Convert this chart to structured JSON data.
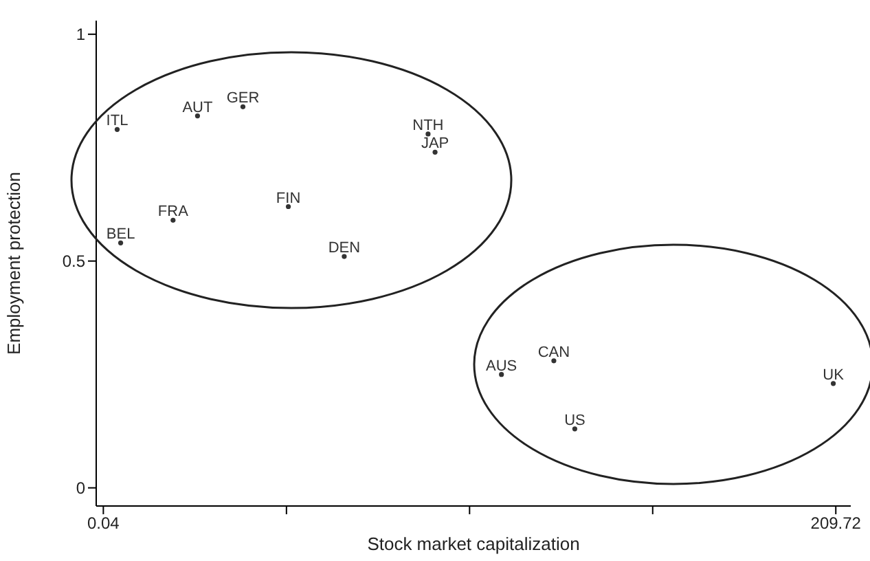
{
  "chart_data": {
    "type": "scatter",
    "xlabel": "Stock market capitalization",
    "ylabel": "Employment protection",
    "xlim": [
      -2,
      214
    ],
    "ylim": [
      -0.04,
      1.03
    ],
    "xticks": [
      0.04,
      {
        "value": 52.46,
        "label": null
      },
      {
        "value": 104.88,
        "label": null
      },
      {
        "value": 157.3,
        "label": null
      },
      209.72
    ],
    "yticks": [
      0,
      0.5,
      1
    ],
    "grid": false,
    "legend": false,
    "marker": "circle",
    "series": [
      {
        "name": "ITL",
        "color": "#333333",
        "x": [
          4
        ],
        "values": [
          0.79
        ]
      },
      {
        "name": "AUT",
        "color": "#333333",
        "x": [
          27
        ],
        "values": [
          0.82
        ]
      },
      {
        "name": "GER",
        "color": "#333333",
        "x": [
          40
        ],
        "values": [
          0.84
        ]
      },
      {
        "name": "NTH",
        "color": "#333333",
        "x": [
          93
        ],
        "values": [
          0.78
        ]
      },
      {
        "name": "JAP",
        "color": "#333333",
        "x": [
          95
        ],
        "values": [
          0.74
        ]
      },
      {
        "name": "FIN",
        "color": "#333333",
        "x": [
          53
        ],
        "values": [
          0.62
        ]
      },
      {
        "name": "FRA",
        "color": "#333333",
        "x": [
          20
        ],
        "values": [
          0.59
        ]
      },
      {
        "name": "BEL",
        "color": "#333333",
        "x": [
          5
        ],
        "values": [
          0.54
        ]
      },
      {
        "name": "DEN",
        "color": "#333333",
        "x": [
          69
        ],
        "values": [
          0.51
        ]
      },
      {
        "name": "AUS",
        "color": "#333333",
        "x": [
          114
        ],
        "values": [
          0.25
        ]
      },
      {
        "name": "CAN",
        "color": "#333333",
        "x": [
          129
        ],
        "values": [
          0.28
        ]
      },
      {
        "name": "UK",
        "color": "#333333",
        "x": [
          209
        ],
        "values": [
          0.23
        ]
      },
      {
        "name": "US",
        "color": "#333333",
        "x": [
          135
        ],
        "values": [
          0.13
        ]
      }
    ]
  }
}
